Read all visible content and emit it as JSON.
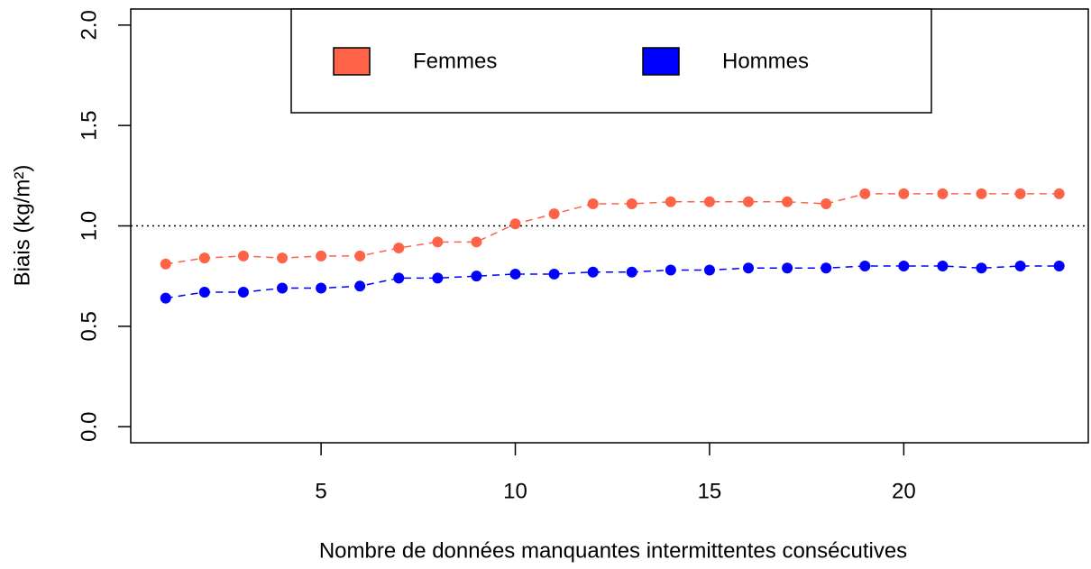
{
  "chart_data": {
    "type": "line",
    "xlabel": "Nombre de données manquantes intermittentes consécutives",
    "ylabel": "Biais (kg/m²)",
    "x": [
      1,
      2,
      3,
      4,
      5,
      6,
      7,
      8,
      9,
      10,
      11,
      12,
      13,
      14,
      15,
      16,
      17,
      18,
      19,
      20,
      21,
      22,
      23,
      24
    ],
    "series": [
      {
        "name": "Femmes",
        "color": "#ff6347",
        "values": [
          0.81,
          0.84,
          0.85,
          0.84,
          0.85,
          0.85,
          0.89,
          0.92,
          0.92,
          1.01,
          1.06,
          1.11,
          1.11,
          1.12,
          1.12,
          1.12,
          1.12,
          1.11,
          1.16,
          1.16,
          1.16,
          1.16,
          1.16,
          1.16
        ]
      },
      {
        "name": "Hommes",
        "color": "#0000ff",
        "values": [
          0.64,
          0.67,
          0.67,
          0.69,
          0.69,
          0.7,
          0.74,
          0.74,
          0.75,
          0.76,
          0.76,
          0.77,
          0.77,
          0.78,
          0.78,
          0.79,
          0.79,
          0.79,
          0.8,
          0.8,
          0.8,
          0.79,
          0.8,
          0.8
        ]
      }
    ],
    "hline": 1,
    "xlim": [
      0.1,
      24.75
    ],
    "xticks": [
      5,
      10,
      15,
      20
    ],
    "ylim": [
      -0.08,
      2.08
    ],
    "yticks": [
      {
        "value": 0,
        "label": "0.0"
      },
      0.5,
      {
        "value": 1,
        "label": "1.0"
      },
      1.5,
      {
        "value": 2,
        "label": "2.0"
      }
    ],
    "legend": "top"
  }
}
